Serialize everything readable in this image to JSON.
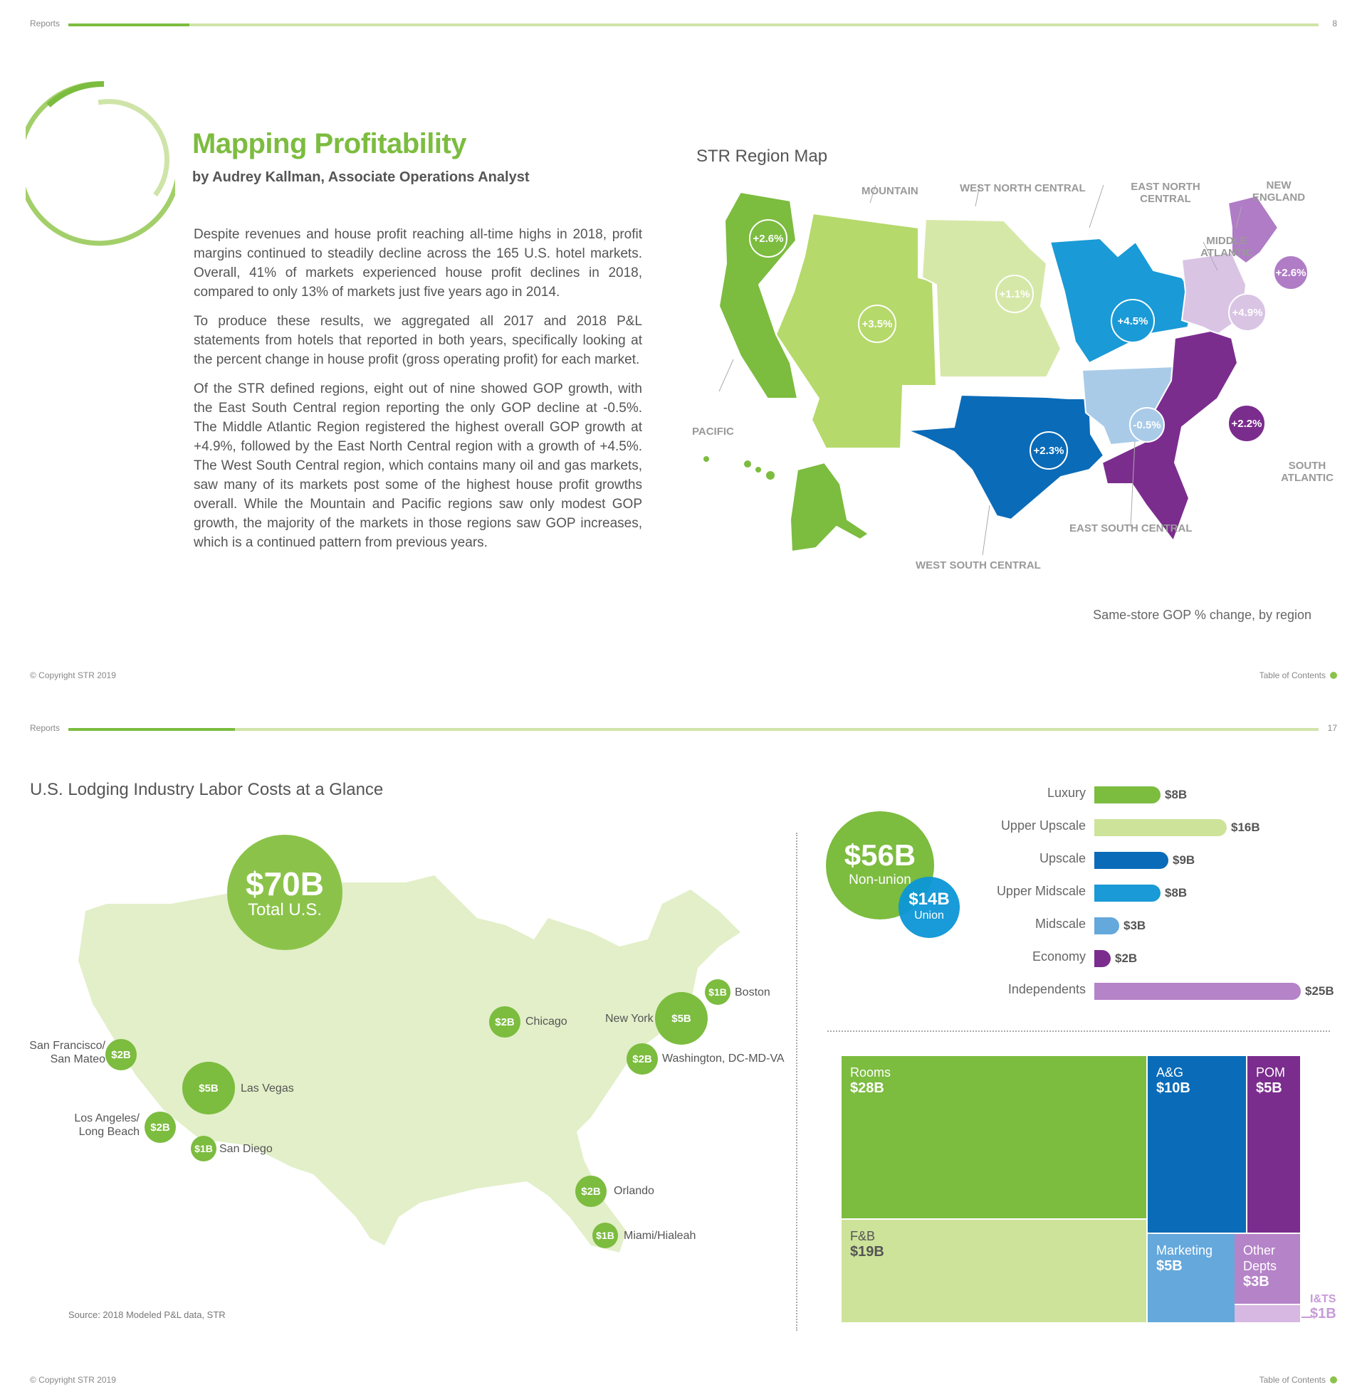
{
  "page1": {
    "header_label": "Reports",
    "page_number": "8",
    "title": "Mapping Profitability",
    "byline": "by Audrey Kallman, Associate Operations Analyst",
    "paragraphs": [
      "Despite revenues and house profit reaching all-time highs in 2018, profit margins continued to steadily decline across the 165 U.S. hotel markets. Overall, 41% of markets experienced house profit declines in 2018, compared to only 13% of markets just five years ago in 2014.",
      "To produce these results, we aggregated all 2017 and 2018 P&L statements from hotels that reported in both years, specifically looking at the percent change in house profit (gross operating profit) for each market.",
      "Of the STR defined regions, eight out of nine showed GOP growth, with the East South Central region reporting the only GOP decline at -0.5%. The Middle Atlantic Region registered the highest overall GOP growth at +4.9%, followed by the East North Central region with a growth of +4.5%. The West South Central region, which contains many oil and gas markets, saw many of its markets post some of the highest house profit growths overall. While the Mountain and Pacific regions saw only modest GOP growth, the majority of the markets in those regions saw GOP increases, which is a continued pattern from previous years."
    ],
    "map_title": "STR Region Map",
    "map_caption": "Same-store GOP % change, by region",
    "regions": [
      {
        "name": "PACIFIC",
        "value": "+2.6%",
        "color": "#7cbc3f"
      },
      {
        "name": "MOUNTAIN",
        "value": "+3.5%",
        "color": "#b5d96a"
      },
      {
        "name": "WEST NORTH CENTRAL",
        "value": "+1.1%",
        "color": "#d6e8a8"
      },
      {
        "name": "EAST NORTH CENTRAL",
        "value": "+4.5%",
        "color": "#1a9ad6"
      },
      {
        "name": "NEW ENGLAND",
        "value": "+2.6%",
        "color": "#b07cc6"
      },
      {
        "name": "MIDDLE ATLANTIC",
        "value": "+4.9%",
        "color": "#d9c4e4"
      },
      {
        "name": "WEST SOUTH CENTRAL",
        "value": "+2.3%",
        "color": "#0a6bb8"
      },
      {
        "name": "EAST SOUTH CENTRAL",
        "value": "-0.5%",
        "color": "#a9cbe8"
      },
      {
        "name": "SOUTH ATLANTIC",
        "value": "+2.2%",
        "color": "#7b2d8e"
      }
    ],
    "copyright": "© Copyright STR 2019",
    "toc": "Table of Contents"
  },
  "page2": {
    "header_label": "Reports",
    "page_number": "17",
    "title": "U.S. Lodging Industry Labor Costs at a Glance",
    "total": {
      "value": "$70B",
      "label": "Total U.S."
    },
    "cities": [
      {
        "name": "San Francisco/ San Mateo",
        "value": "$2B"
      },
      {
        "name": "Las Vegas",
        "value": "$5B"
      },
      {
        "name": "Los Angeles/ Long Beach",
        "value": "$2B"
      },
      {
        "name": "San Diego",
        "value": "$1B"
      },
      {
        "name": "Chicago",
        "value": "$2B"
      },
      {
        "name": "New York",
        "value": "$5B"
      },
      {
        "name": "Boston",
        "value": "$1B"
      },
      {
        "name": "Washington, DC-MD-VA",
        "value": "$2B"
      },
      {
        "name": "Orlando",
        "value": "$2B"
      },
      {
        "name": "Miami/Hialeah",
        "value": "$1B"
      }
    ],
    "source": "Source: 2018 Modeled P&L data, STR",
    "nonunion": {
      "value": "$56B",
      "label": "Non-union"
    },
    "union": {
      "value": "$14B",
      "label": "Union"
    },
    "copyright": "© Copyright STR 2019",
    "toc": "Table of Contents"
  },
  "chart_data": [
    {
      "type": "bar",
      "title": "",
      "categories": [
        "Luxury",
        "Upper Upscale",
        "Upscale",
        "Upper Midscale",
        "Midscale",
        "Economy",
        "Independents"
      ],
      "values": [
        8,
        16,
        9,
        8,
        3,
        2,
        25
      ],
      "value_labels": [
        "$8B",
        "$16B",
        "$9B",
        "$8B",
        "$3B",
        "$2B",
        "$25B"
      ],
      "colors": [
        "#7cbc3f",
        "#cde39a",
        "#0a6bb8",
        "#1a9ad6",
        "#64a8dc",
        "#7b2d8e",
        "#b583c8"
      ],
      "orientation": "horizontal",
      "unit": "$B"
    },
    {
      "type": "treemap",
      "title": "",
      "items": [
        {
          "name": "Rooms",
          "value": 28,
          "label": "$28B",
          "color": "#7cbc3f"
        },
        {
          "name": "F&B",
          "value": 19,
          "label": "$19B",
          "color": "#cde39a"
        },
        {
          "name": "A&G",
          "value": 10,
          "label": "$10B",
          "color": "#0a6bb8"
        },
        {
          "name": "Marketing",
          "value": 5,
          "label": "$5B",
          "color": "#64a8dc"
        },
        {
          "name": "POM",
          "value": 5,
          "label": "$5B",
          "color": "#7b2d8e"
        },
        {
          "name": "Other Depts",
          "value": 3,
          "label": "$3B",
          "color": "#b583c8"
        },
        {
          "name": "I&TS",
          "value": 1,
          "label": "$1B",
          "color": "#d7b8e2"
        }
      ]
    }
  ]
}
